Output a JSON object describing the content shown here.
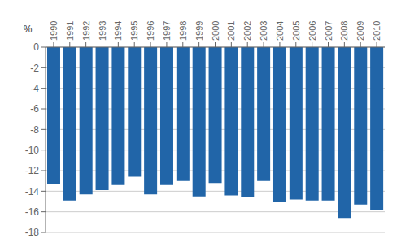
{
  "chart_data": {
    "type": "bar",
    "categories": [
      "1990",
      "1991",
      "1992",
      "1993",
      "1994",
      "1995",
      "1996",
      "1997",
      "1998",
      "1999",
      "2000",
      "2001",
      "2002",
      "2003",
      "2004",
      "2005",
      "2006",
      "2007",
      "2008",
      "2009",
      "2010"
    ],
    "values": [
      -13.3,
      -14.9,
      -14.3,
      -13.9,
      -13.4,
      -12.6,
      -14.3,
      -13.4,
      -13.0,
      -14.5,
      -13.2,
      -14.4,
      -14.6,
      -13.0,
      -15.0,
      -14.8,
      -14.9,
      -14.9,
      -16.6,
      -15.3,
      -15.8
    ],
    "color": "#2165a8",
    "ylim": [
      -18,
      0
    ],
    "yticks": [
      0,
      -2,
      -4,
      -6,
      -8,
      -10,
      -12,
      -14,
      -16,
      -18
    ],
    "ylabel": "%",
    "grid": true
  }
}
